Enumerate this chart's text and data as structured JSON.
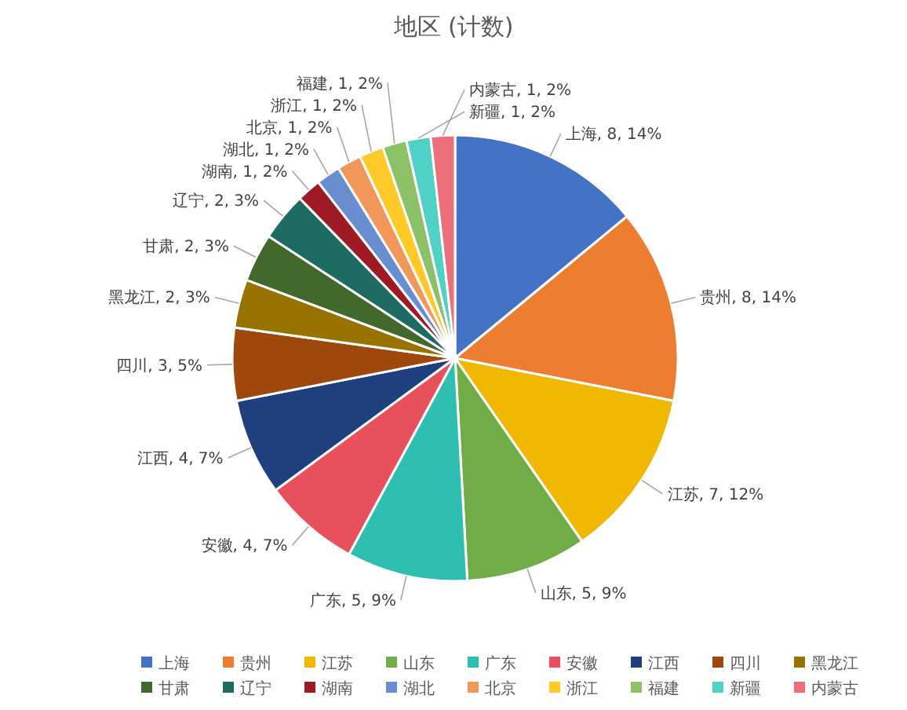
{
  "chart_data": {
    "type": "pie",
    "title": "地区 (计数)",
    "categories": [
      "上海",
      "贵州",
      "江苏",
      "山东",
      "广东",
      "安徽",
      "江西",
      "四川",
      "黑龙江",
      "甘肃",
      "辽宁",
      "湖南",
      "湖北",
      "北京",
      "浙江",
      "福建",
      "新疆",
      "内蒙古"
    ],
    "values": [
      8,
      8,
      7,
      5,
      5,
      4,
      4,
      3,
      2,
      2,
      2,
      1,
      1,
      1,
      1,
      1,
      1,
      1
    ],
    "value_labels": [
      "上海, 8, 14%",
      "贵州, 8, 14%",
      "江苏, 7, 12%",
      "山东, 5, 9%",
      "广东, 5, 9%",
      "安徽, 4, 7%",
      "江西, 4, 7%",
      "四川, 3, 5%",
      "黑龙江, 2, 3%",
      "甘肃, 2, 3%",
      "辽宁, 2, 3%",
      "湖南, 1, 2%",
      "湖北, 1, 2%",
      "北京, 1, 2%",
      "浙江, 1, 2%",
      "福建, 1, 2%",
      "新疆, 1, 2%",
      "内蒙古, 1, 2%"
    ],
    "colors": [
      "#4472c4",
      "#ed7d31",
      "#f0b800",
      "#70ad47",
      "#2fbfb0",
      "#e8505b",
      "#203f7f",
      "#9e480e",
      "#997300",
      "#43682b",
      "#1e6b62",
      "#9e1b26",
      "#698ed0",
      "#f1975a",
      "#ffc928",
      "#8cc168",
      "#4fd1c5",
      "#ec6f7c"
    ],
    "legend": "bottom"
  }
}
